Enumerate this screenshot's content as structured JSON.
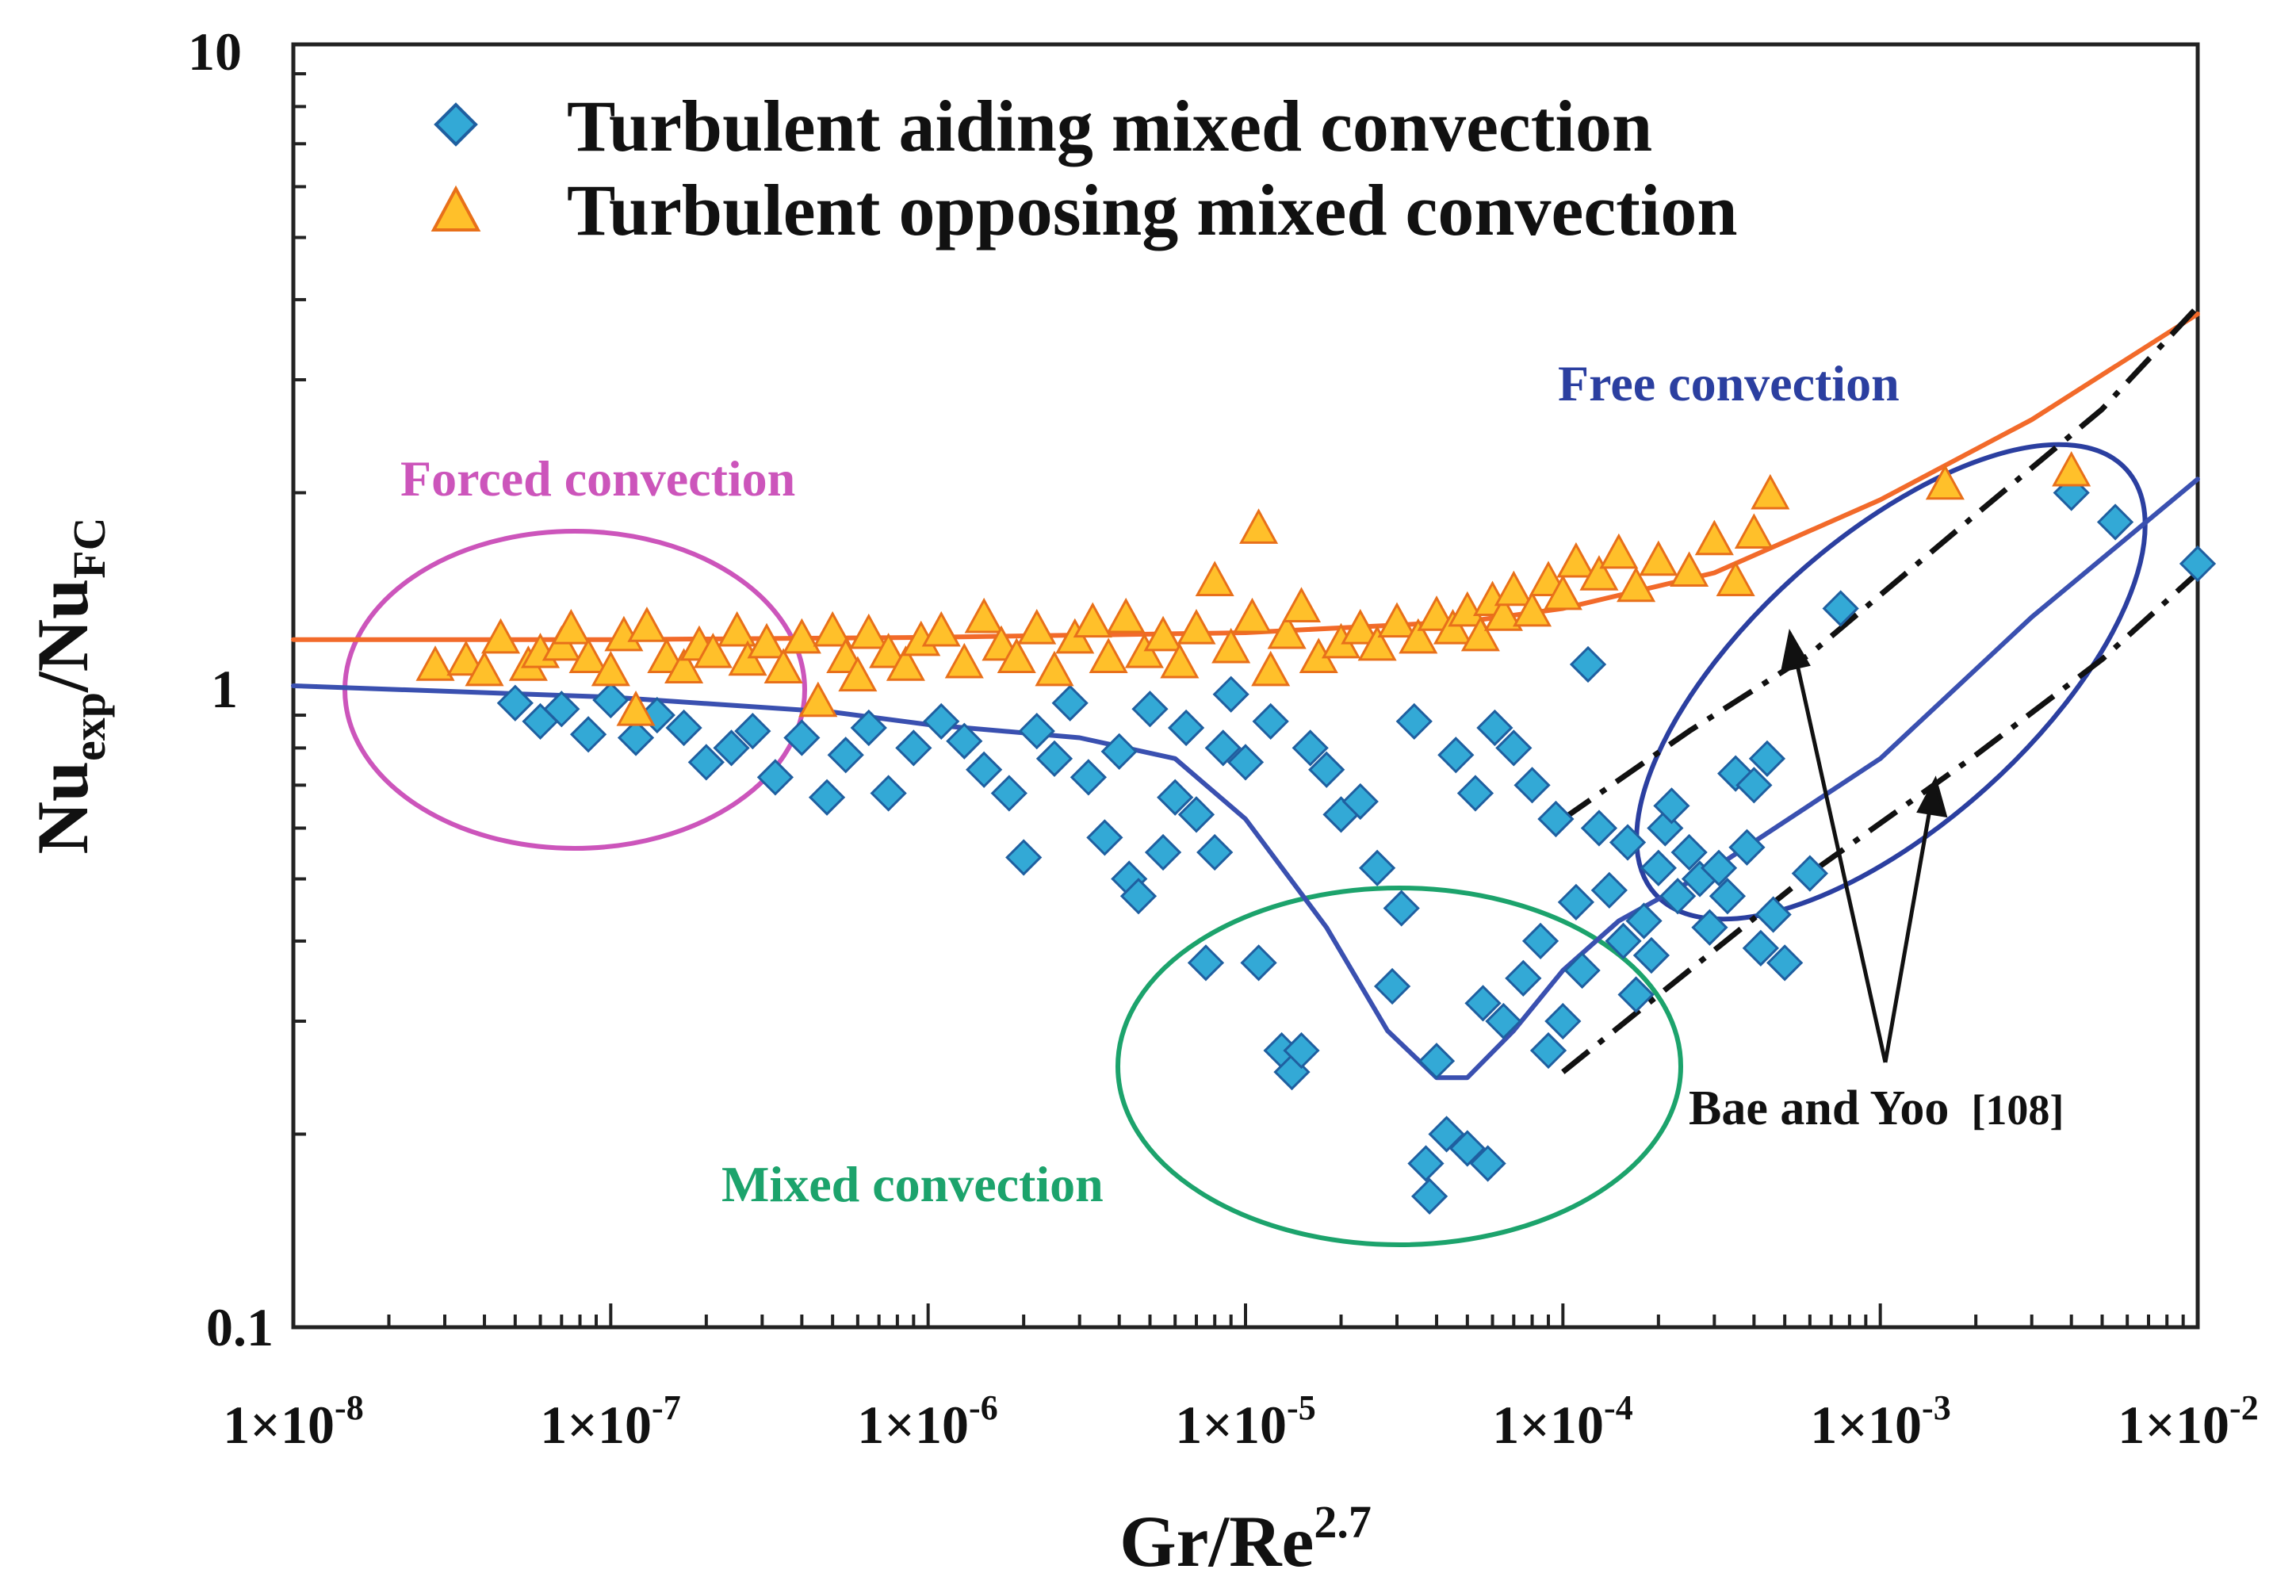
{
  "chart_data": {
    "type": "scatter",
    "x_scale": "log",
    "y_scale": "log",
    "xlim": [
      1e-08,
      0.01
    ],
    "ylim": [
      0.1,
      10
    ],
    "xlabel": {
      "base": "Gr/Re",
      "sup": "2.7"
    },
    "ylabel": {
      "base1": "Nu",
      "sub1": "exp",
      "sep": "/Nu",
      "sub2": "FC"
    },
    "x_ticks": [
      {
        "value": 1e-08,
        "mant": "1×10",
        "exp": "-8"
      },
      {
        "value": 1e-07,
        "mant": "1×10",
        "exp": "-7"
      },
      {
        "value": 1e-06,
        "mant": "1×10",
        "exp": "-6"
      },
      {
        "value": 1e-05,
        "mant": "1×10",
        "exp": "-5"
      },
      {
        "value": 0.0001,
        "mant": "1×10",
        "exp": "-4"
      },
      {
        "value": 0.001,
        "mant": "1×10",
        "exp": "-3"
      },
      {
        "value": 0.01,
        "mant": "1×10",
        "exp": "-2"
      }
    ],
    "y_ticks": [
      {
        "value": 0.1,
        "label": "0.1"
      },
      {
        "value": 1,
        "label": "1"
      },
      {
        "value": 10,
        "label": "10"
      }
    ],
    "legend": [
      {
        "label": "Turbulent aiding mixed convection",
        "marker": "diamond",
        "color": "#33a9d6",
        "edge": "#1f5fa0"
      },
      {
        "label": "Turbulent opposing mixed convection",
        "marker": "triangle",
        "color": "#ffc02a",
        "edge": "#e8701a"
      }
    ],
    "series": [
      {
        "name": "Turbulent aiding mixed convection",
        "marker": "diamond",
        "points": [
          [
            5e-08,
            0.94
          ],
          [
            6e-08,
            0.88
          ],
          [
            7e-08,
            0.92
          ],
          [
            8.5e-08,
            0.84
          ],
          [
            1e-07,
            0.95
          ],
          [
            1.2e-07,
            0.83
          ],
          [
            1.4e-07,
            0.9
          ],
          [
            1.7e-07,
            0.86
          ],
          [
            2e-07,
            0.76
          ],
          [
            2.4e-07,
            0.8
          ],
          [
            2.8e-07,
            0.85
          ],
          [
            3.3e-07,
            0.72
          ],
          [
            4e-07,
            0.83
          ],
          [
            4.8e-07,
            0.67
          ],
          [
            5.5e-07,
            0.78
          ],
          [
            6.5e-07,
            0.86
          ],
          [
            7.5e-07,
            0.68
          ],
          [
            9e-07,
            0.8
          ],
          [
            1.1e-06,
            0.88
          ],
          [
            1.3e-06,
            0.82
          ],
          [
            1.5e-06,
            0.74
          ],
          [
            1.8e-06,
            0.68
          ],
          [
            2e-06,
            0.54
          ],
          [
            2.2e-06,
            0.85
          ],
          [
            2.5e-06,
            0.77
          ],
          [
            2.8e-06,
            0.94
          ],
          [
            3.2e-06,
            0.72
          ],
          [
            3.6e-06,
            0.58
          ],
          [
            4e-06,
            0.79
          ],
          [
            4.3e-06,
            0.5
          ],
          [
            4.6e-06,
            0.47
          ],
          [
            5e-06,
            0.92
          ],
          [
            5.5e-06,
            0.55
          ],
          [
            6e-06,
            0.67
          ],
          [
            6.5e-06,
            0.86
          ],
          [
            7e-06,
            0.63
          ],
          [
            7.5e-06,
            0.37
          ],
          [
            8e-06,
            0.55
          ],
          [
            8.5e-06,
            0.8
          ],
          [
            9e-06,
            0.97
          ],
          [
            1e-05,
            0.76
          ],
          [
            1.1e-05,
            0.37
          ],
          [
            1.2e-05,
            0.88
          ],
          [
            1.3e-05,
            0.27
          ],
          [
            1.4e-05,
            0.25
          ],
          [
            1.5e-05,
            0.27
          ],
          [
            1.6e-05,
            0.8
          ],
          [
            1.8e-05,
            0.74
          ],
          [
            2e-05,
            0.63
          ],
          [
            2.3e-05,
            0.66
          ],
          [
            2.6e-05,
            0.52
          ],
          [
            2.9e-05,
            0.34
          ],
          [
            3.1e-05,
            0.45
          ],
          [
            3.4e-05,
            0.88
          ],
          [
            3.7e-05,
            0.18
          ],
          [
            3.8e-05,
            0.16
          ],
          [
            4e-05,
            0.26
          ],
          [
            4.3e-05,
            0.2
          ],
          [
            4.6e-05,
            0.78
          ],
          [
            5e-05,
            0.19
          ],
          [
            5.3e-05,
            0.68
          ],
          [
            5.6e-05,
            0.32
          ],
          [
            5.8e-05,
            0.18
          ],
          [
            6.1e-05,
            0.86
          ],
          [
            6.5e-05,
            0.3
          ],
          [
            7e-05,
            0.8
          ],
          [
            7.5e-05,
            0.35
          ],
          [
            8e-05,
            0.7
          ],
          [
            8.5e-05,
            0.4
          ],
          [
            9e-05,
            0.27
          ],
          [
            9.5e-05,
            0.62
          ],
          [
            0.0001,
            0.3
          ],
          [
            0.00011,
            0.46
          ],
          [
            0.000115,
            0.36
          ],
          [
            0.00012,
            1.08
          ],
          [
            0.00013,
            0.6
          ],
          [
            0.00014,
            0.48
          ],
          [
            0.000155,
            0.4
          ],
          [
            0.00016,
            0.57
          ],
          [
            0.00017,
            0.33
          ],
          [
            0.00018,
            0.43
          ],
          [
            0.00019,
            0.38
          ],
          [
            0.0002,
            0.52
          ],
          [
            0.00021,
            0.6
          ],
          [
            0.00022,
            0.65
          ],
          [
            0.00023,
            0.47
          ],
          [
            0.00025,
            0.55
          ],
          [
            0.00027,
            0.5
          ],
          [
            0.00029,
            0.42
          ],
          [
            0.00031,
            0.52
          ],
          [
            0.00033,
            0.47
          ],
          [
            0.00035,
            0.73
          ],
          [
            0.00038,
            0.56
          ],
          [
            0.0004,
            0.7
          ],
          [
            0.00042,
            0.39
          ],
          [
            0.00044,
            0.77
          ],
          [
            0.00046,
            0.44
          ],
          [
            0.0005,
            0.37
          ],
          [
            0.0006,
            0.51
          ],
          [
            0.00075,
            1.32
          ],
          [
            0.004,
            2.0
          ],
          [
            0.0055,
            1.8
          ],
          [
            0.01,
            1.55
          ]
        ]
      },
      {
        "name": "Turbulent opposing mixed convection",
        "marker": "triangle",
        "points": [
          [
            2.8e-08,
            1.07
          ],
          [
            3.5e-08,
            1.09
          ],
          [
            4e-08,
            1.05
          ],
          [
            4.5e-08,
            1.18
          ],
          [
            5.5e-08,
            1.07
          ],
          [
            6e-08,
            1.12
          ],
          [
            7e-08,
            1.15
          ],
          [
            7.5e-08,
            1.22
          ],
          [
            8.5e-08,
            1.1
          ],
          [
            1e-07,
            1.05
          ],
          [
            1.1e-07,
            1.19
          ],
          [
            1.2e-07,
            0.91
          ],
          [
            1.3e-07,
            1.23
          ],
          [
            1.5e-07,
            1.1
          ],
          [
            1.7e-07,
            1.06
          ],
          [
            1.9e-07,
            1.15
          ],
          [
            2.1e-07,
            1.12
          ],
          [
            2.5e-07,
            1.21
          ],
          [
            2.7e-07,
            1.09
          ],
          [
            3.1e-07,
            1.16
          ],
          [
            3.5e-07,
            1.06
          ],
          [
            4e-07,
            1.18
          ],
          [
            4.5e-07,
            0.94
          ],
          [
            5e-07,
            1.21
          ],
          [
            5.5e-07,
            1.1
          ],
          [
            6e-07,
            1.03
          ],
          [
            6.5e-07,
            1.2
          ],
          [
            7.5e-07,
            1.12
          ],
          [
            8.5e-07,
            1.07
          ],
          [
            9.5e-07,
            1.17
          ],
          [
            1.1e-06,
            1.21
          ],
          [
            1.3e-06,
            1.08
          ],
          [
            1.5e-06,
            1.27
          ],
          [
            1.7e-06,
            1.15
          ],
          [
            1.9e-06,
            1.1
          ],
          [
            2.2e-06,
            1.22
          ],
          [
            2.5e-06,
            1.05
          ],
          [
            2.9e-06,
            1.18
          ],
          [
            3.3e-06,
            1.25
          ],
          [
            3.7e-06,
            1.1
          ],
          [
            4.2e-06,
            1.27
          ],
          [
            4.8e-06,
            1.12
          ],
          [
            5.5e-06,
            1.19
          ],
          [
            6.2e-06,
            1.08
          ],
          [
            7e-06,
            1.22
          ],
          [
            8e-06,
            1.45
          ],
          [
            9e-06,
            1.14
          ],
          [
            1.05e-05,
            1.27
          ],
          [
            1.1e-05,
            1.75
          ],
          [
            1.2e-05,
            1.05
          ],
          [
            1.35e-05,
            1.2
          ],
          [
            1.5e-05,
            1.32
          ],
          [
            1.7e-05,
            1.1
          ],
          [
            2e-05,
            1.16
          ],
          [
            2.3e-05,
            1.22
          ],
          [
            2.6e-05,
            1.15
          ],
          [
            3e-05,
            1.25
          ],
          [
            3.5e-05,
            1.18
          ],
          [
            4e-05,
            1.28
          ],
          [
            4.5e-05,
            1.22
          ],
          [
            5e-05,
            1.3
          ],
          [
            5.5e-05,
            1.19
          ],
          [
            6e-05,
            1.35
          ],
          [
            6.5e-05,
            1.28
          ],
          [
            7e-05,
            1.4
          ],
          [
            8e-05,
            1.3
          ],
          [
            9e-05,
            1.45
          ],
          [
            0.0001,
            1.38
          ],
          [
            0.00011,
            1.55
          ],
          [
            0.00013,
            1.48
          ],
          [
            0.00015,
            1.6
          ],
          [
            0.00017,
            1.42
          ],
          [
            0.0002,
            1.56
          ],
          [
            0.00025,
            1.5
          ],
          [
            0.0003,
            1.68
          ],
          [
            0.00035,
            1.45
          ],
          [
            0.0004,
            1.72
          ],
          [
            0.00045,
            1.98
          ],
          [
            0.0016,
            2.05
          ],
          [
            0.004,
            2.15
          ]
        ]
      }
    ],
    "curves": [
      {
        "name": "opposing correlation",
        "color": "#f26a2a",
        "points": [
          [
            1e-08,
            1.18
          ],
          [
            1e-07,
            1.18
          ],
          [
            1e-06,
            1.19
          ],
          [
            1e-05,
            1.21
          ],
          [
            5e-05,
            1.26
          ],
          [
            0.0001,
            1.32
          ],
          [
            0.0003,
            1.5
          ],
          [
            0.001,
            1.95
          ],
          [
            0.003,
            2.6
          ],
          [
            0.01,
            3.8
          ]
        ]
      },
      {
        "name": "aiding correlation",
        "color": "#3a50b0",
        "points": [
          [
            1e-08,
            1.0
          ],
          [
            1e-07,
            0.96
          ],
          [
            5e-07,
            0.91
          ],
          [
            1e-06,
            0.87
          ],
          [
            3e-06,
            0.83
          ],
          [
            6e-06,
            0.77
          ],
          [
            1e-05,
            0.62
          ],
          [
            1.8e-05,
            0.42
          ],
          [
            2.8e-05,
            0.29
          ],
          [
            4e-05,
            0.245
          ],
          [
            5e-05,
            0.245
          ],
          [
            7e-05,
            0.29
          ],
          [
            0.0001,
            0.36
          ],
          [
            0.00015,
            0.43
          ],
          [
            0.0003,
            0.52
          ],
          [
            0.001,
            0.77
          ],
          [
            0.003,
            1.28
          ],
          [
            0.01,
            2.1
          ]
        ]
      },
      {
        "name": "Bae and Yoo upper",
        "color": "#111111",
        "dash": "dashdot",
        "points": [
          [
            0.0001,
            0.62
          ],
          [
            0.00025,
            0.85
          ],
          [
            0.0006,
            1.12
          ],
          [
            0.002,
            1.85
          ],
          [
            0.005,
            2.7
          ],
          [
            0.01,
            3.9
          ]
        ]
      },
      {
        "name": "Bae and Yoo lower",
        "color": "#111111",
        "dash": "dashdot",
        "points": [
          [
            0.0001,
            0.25
          ],
          [
            0.00025,
            0.36
          ],
          [
            0.0006,
            0.51
          ],
          [
            0.002,
            0.78
          ],
          [
            0.005,
            1.1
          ],
          [
            0.01,
            1.5
          ]
        ]
      }
    ],
    "regions": [
      {
        "label": "Forced convection",
        "color": "#cc55bb"
      },
      {
        "label": "Mixed convection",
        "color": "#1ca36c"
      },
      {
        "label": "Free convection",
        "color": "#2b3fa0"
      }
    ],
    "annotations": [
      {
        "label": "Bae and Yoo",
        "ref": "[108]"
      }
    ]
  }
}
